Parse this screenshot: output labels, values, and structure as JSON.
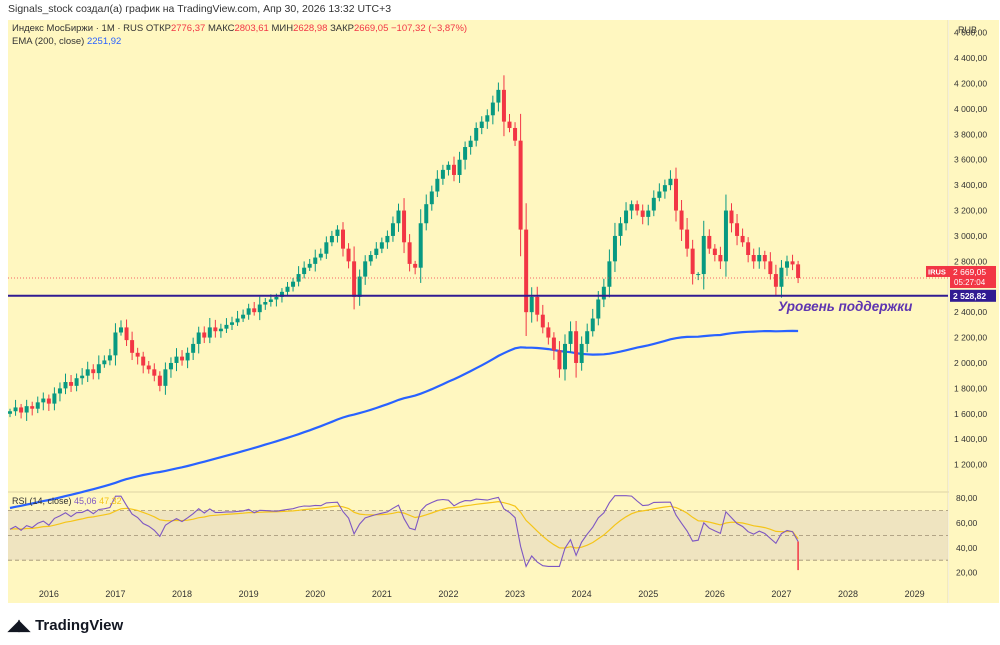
{
  "header": {
    "caption": "Signals_stock создал(а) график на TradingView.com, Апр 30, 2026 13:32 UTC+3"
  },
  "legend": {
    "symbol": "Индекс МосБиржи · 1М · RUS",
    "open_label": "ОТКР",
    "open": "2776,37",
    "high_label": "МАКС",
    "high": "2803,61",
    "low_label": "МИН",
    "low": "2628,98",
    "close_label": "ЗАКР",
    "close": "2669,05",
    "change": "−107,32 (−3,87%)",
    "ema_label": "EMA (200, close)",
    "ema_value": "2251,92",
    "rsi_label": "RSI (14, close)",
    "rsi_value": "45,06",
    "rsi_ma_value": "47,32"
  },
  "price_axis": {
    "currency": "RUB",
    "ticks": [
      "4 600,00",
      "4 400,00",
      "4 200,00",
      "4 000,00",
      "3 800,00",
      "3 600,00",
      "3 400,00",
      "3 200,00",
      "3 000,00",
      "2 800,00",
      "2 400,00",
      "2 200,00",
      "2 000,00",
      "1 800,00",
      "1 600,00",
      "1 400,00",
      "1 200,00"
    ],
    "ticker_tag": "IRUS",
    "last_price": "2 669,05",
    "countdown": "05:27:04",
    "support_price": "2 528,82"
  },
  "rsi_axis": {
    "ticks": [
      "80,00",
      "60,00",
      "40,00",
      "20,00"
    ]
  },
  "time_axis": {
    "ticks": [
      "2016",
      "2017",
      "2018",
      "2019",
      "2020",
      "2021",
      "2022",
      "2023",
      "2024",
      "2025",
      "2026",
      "2027",
      "2028",
      "2029"
    ]
  },
  "annotation": {
    "support_text": "Уровень поддержки"
  },
  "colors": {
    "background": "#fff7c0",
    "up": "#089981",
    "down": "#f23645",
    "ema": "#2962ff",
    "support": "#311b92",
    "rsi": "#7e57c2",
    "rsi_ma": "#f5c518",
    "rsi_band": "#e8dcc0"
  },
  "branding": {
    "name": "TradingView"
  },
  "chart_data": {
    "type": "candlestick",
    "interval": "1M",
    "x_start": "2015-06",
    "close_series": [
      1620,
      1650,
      1610,
      1660,
      1640,
      1690,
      1720,
      1680,
      1760,
      1800,
      1850,
      1820,
      1880,
      1900,
      1950,
      1920,
      1990,
      2020,
      2060,
      2240,
      2280,
      2180,
      2080,
      2050,
      1980,
      1950,
      1900,
      1820,
      1950,
      2000,
      2050,
      2020,
      2080,
      2150,
      2240,
      2200,
      2280,
      2250,
      2270,
      2300,
      2320,
      2350,
      2380,
      2430,
      2400,
      2460,
      2480,
      2500,
      2520,
      2560,
      2600,
      2640,
      2700,
      2750,
      2780,
      2830,
      2860,
      2950,
      3000,
      3050,
      2900,
      2800,
      2520,
      2680,
      2800,
      2850,
      2900,
      2950,
      3000,
      3100,
      3200,
      2950,
      2780,
      2750,
      3100,
      3250,
      3350,
      3450,
      3520,
      3560,
      3480,
      3600,
      3700,
      3750,
      3850,
      3900,
      3950,
      4050,
      4150,
      3900,
      3850,
      3750,
      3050,
      2400,
      2520,
      2380,
      2280,
      2200,
      2100,
      1950,
      2150,
      2250,
      2000,
      2150,
      2250,
      2350,
      2500,
      2600,
      2800,
      3000,
      3100,
      3200,
      3250,
      3200,
      3150,
      3200,
      3300,
      3350,
      3400,
      3450,
      3200,
      3050,
      2900,
      2700,
      2700,
      3000,
      2900,
      2850,
      2800,
      3200,
      3100,
      3000,
      2950,
      2850,
      2800,
      2850,
      2800,
      2700,
      2600,
      2750,
      2800,
      2776,
      2669
    ],
    "open_last": 2776.37,
    "high_last": 2803.61,
    "low_last": 2628.98,
    "close_last": 2669.05,
    "ema200": {
      "name": "EMA (200, close)",
      "last": 2251.92
    },
    "support_level": 2528.82,
    "rsi": {
      "name": "RSI (14, close)",
      "last": 45.06,
      "ma_last": 47.32,
      "bands": [
        70,
        50,
        30
      ]
    },
    "y_range": [
      1000,
      4700
    ],
    "rsi_range": [
      10,
      85
    ]
  }
}
